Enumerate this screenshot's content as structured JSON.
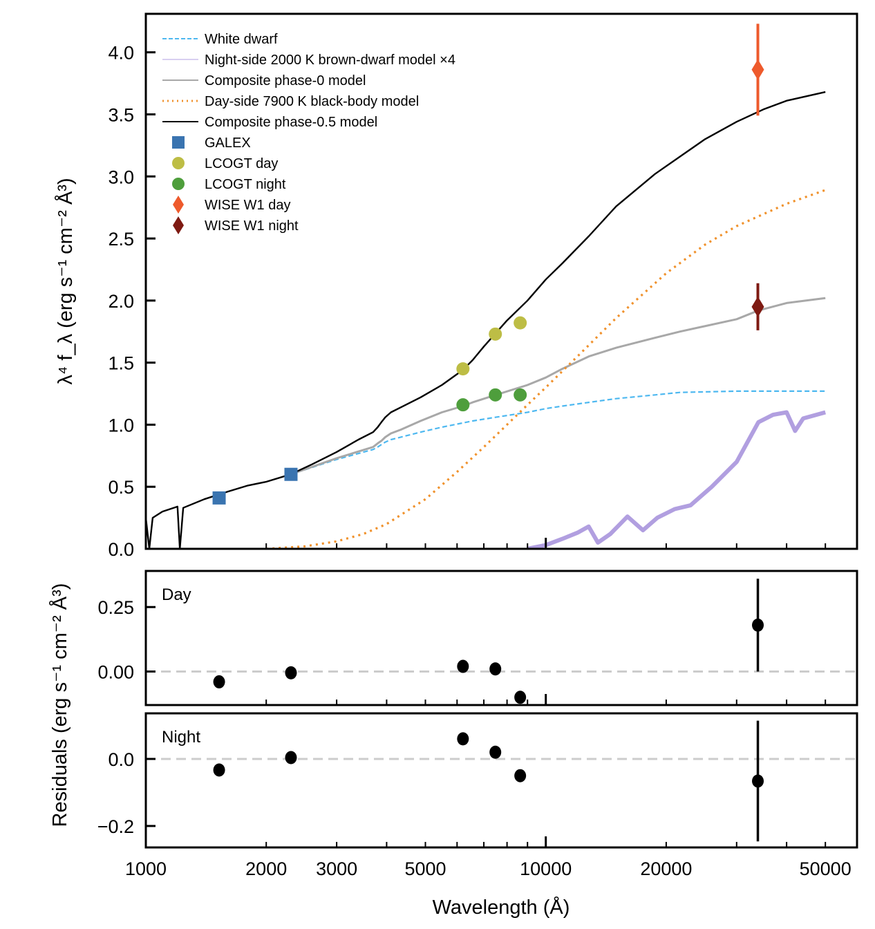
{
  "chart_data": {
    "type": "line",
    "xlabel": "Wavelength (Å)",
    "xscale": "log",
    "xlim": [
      1000,
      60000
    ],
    "xticks": [
      1000,
      2000,
      3000,
      5000,
      10000,
      20000,
      50000
    ],
    "xtick_labels": [
      "1000",
      "2000",
      "3000",
      "5000",
      "10000",
      "20000",
      "50000"
    ],
    "panels": [
      {
        "id": "main",
        "ylabel": "λ⁴ f_λ (erg s⁻¹ cm⁻² Å³)",
        "ylim": [
          0,
          4.31
        ],
        "yticks": [
          0.0,
          0.5,
          1.0,
          1.5,
          2.0,
          2.5,
          3.0,
          3.5,
          4.0
        ],
        "ytick_labels": [
          "0.0",
          "0.5",
          "1.0",
          "1.5",
          "2.0",
          "2.5",
          "3.0",
          "3.5",
          "4.0"
        ],
        "legend_position": "top-left",
        "series": [
          {
            "name": "White dwarf",
            "style": "dashed",
            "color": "#4db8f0",
            "x": [
              2300,
              3000,
              3700,
              3800,
              3880,
              3970,
              4100,
              4340,
              4861,
              5500,
              6563,
              7500,
              9000,
              10000,
              11000,
              12818,
              15000,
              18751,
              21655,
              30000,
              40000,
              50000
            ],
            "y": [
              0.6,
              0.72,
              0.8,
              0.82,
              0.84,
              0.86,
              0.88,
              0.9,
              0.94,
              0.98,
              1.03,
              1.06,
              1.1,
              1.13,
              1.15,
              1.18,
              1.21,
              1.24,
              1.26,
              1.27,
              1.27,
              1.27
            ]
          },
          {
            "name": "Night-side 2000 K brown-dwarf model ×4",
            "style": "solid",
            "color": "#b19fe0",
            "x": [
              9000,
              10000,
              11000,
              12000,
              12800,
              13500,
              14500,
              16000,
              17500,
              19000,
              21000,
              23000,
              26000,
              30000,
              34000,
              37000,
              40000,
              42000,
              44000,
              50000
            ],
            "y": [
              0.0,
              0.03,
              0.08,
              0.13,
              0.18,
              0.05,
              0.12,
              0.26,
              0.15,
              0.25,
              0.32,
              0.35,
              0.5,
              0.7,
              1.02,
              1.08,
              1.1,
              0.95,
              1.05,
              1.1
            ]
          },
          {
            "name": "Composite phase-0 model",
            "style": "solid",
            "color": "#a8a8a8",
            "x": [
              2300,
              3000,
              3700,
              3800,
              3880,
              3970,
              4100,
              4340,
              4861,
              5500,
              6200,
              6563,
              7500,
              9000,
              10000,
              11000,
              12818,
              15000,
              18751,
              21655,
              30000,
              34000,
              40000,
              50000
            ],
            "y": [
              0.6,
              0.73,
              0.82,
              0.85,
              0.87,
              0.9,
              0.93,
              0.96,
              1.03,
              1.1,
              1.15,
              1.18,
              1.24,
              1.32,
              1.38,
              1.45,
              1.55,
              1.62,
              1.7,
              1.75,
              1.85,
              1.92,
              1.98,
              2.02
            ]
          },
          {
            "name": "Day-side 7900 K black-body model",
            "style": "dotted",
            "color": "#f0922d",
            "x": [
              2000,
              2500,
              3000,
              3500,
              4000,
              5000,
              6000,
              7000,
              8000,
              9000,
              10000,
              12000,
              15000,
              20000,
              25000,
              30000,
              40000,
              50000
            ],
            "y": [
              0.0,
              0.02,
              0.06,
              0.12,
              0.2,
              0.4,
              0.62,
              0.82,
              1.0,
              1.16,
              1.3,
              1.55,
              1.86,
              2.22,
              2.45,
              2.6,
              2.78,
              2.89
            ]
          },
          {
            "name": "Composite phase-0.5 model",
            "style": "solid",
            "color": "#000000",
            "x": [
              1000,
              1020,
              1040,
              1100,
              1200,
              1216,
              1240,
              1400,
              1600,
              1800,
              2000,
              2300,
              2600,
              3000,
              3400,
              3700,
              3800,
              3880,
              3970,
              4100,
              4340,
              4861,
              5500,
              6200,
              6563,
              7000,
              8000,
              9000,
              10000,
              11000,
              12818,
              15000,
              18751,
              21655,
              25000,
              30000,
              35000,
              40000,
              50000
            ],
            "y": [
              0.25,
              0.0,
              0.25,
              0.3,
              0.34,
              0.0,
              0.33,
              0.4,
              0.46,
              0.51,
              0.54,
              0.6,
              0.68,
              0.78,
              0.88,
              0.94,
              0.98,
              1.02,
              1.06,
              1.1,
              1.14,
              1.22,
              1.32,
              1.44,
              1.52,
              1.63,
              1.84,
              2.0,
              2.17,
              2.3,
              2.52,
              2.76,
              3.02,
              3.16,
              3.3,
              3.44,
              3.54,
              3.61,
              3.68
            ]
          }
        ],
        "points": [
          {
            "name": "GALEX",
            "marker": "square",
            "color": "#3a74b0",
            "x": [
              1525,
              2306
            ],
            "y": [
              0.41,
              0.6
            ],
            "yerr": [
              0.0,
              0.0
            ]
          },
          {
            "name": "LCOGT day",
            "marker": "circle",
            "color": "#bdbd45",
            "x": [
              6207,
              7480,
              8630
            ],
            "y": [
              1.45,
              1.73,
              1.82
            ],
            "yerr": [
              0.0,
              0.0,
              0.0
            ]
          },
          {
            "name": "LCOGT night",
            "marker": "circle",
            "color": "#4e9e3c",
            "x": [
              6207,
              7480,
              8630
            ],
            "y": [
              1.16,
              1.24,
              1.24
            ],
            "yerr": [
              0.0,
              0.0,
              0.0
            ]
          },
          {
            "name": "WISE W1 day",
            "marker": "diamond",
            "color": "#ee5a2c",
            "x": [
              33900
            ],
            "y": [
              3.86
            ],
            "yerr": [
              0.37
            ]
          },
          {
            "name": "WISE W1 night",
            "marker": "diamond",
            "color": "#7e1a12",
            "x": [
              33900
            ],
            "y": [
              1.95
            ],
            "yerr": [
              0.19
            ]
          }
        ]
      },
      {
        "id": "residuals-day",
        "label": "Day",
        "ylim": [
          -0.13,
          0.39
        ],
        "yticks": [
          0.0,
          0.25
        ],
        "ytick_labels": [
          "0.00",
          "0.25"
        ],
        "reference_line": 0.0,
        "points": {
          "x": [
            1525,
            2306,
            6207,
            7480,
            8630,
            33900
          ],
          "y": [
            -0.04,
            -0.005,
            0.02,
            0.01,
            -0.1,
            0.18
          ],
          "yerr": [
            0.0,
            0.0,
            0.0,
            0.0,
            0.0,
            0.18
          ]
        }
      },
      {
        "id": "residuals-night",
        "label": "Night",
        "ylim": [
          -0.264,
          0.136
        ],
        "yticks": [
          -0.2,
          0.0
        ],
        "ytick_labels": [
          "−0.2",
          "0.0"
        ],
        "reference_line": 0.0,
        "points": {
          "x": [
            1525,
            2306,
            6207,
            7480,
            8630,
            33900
          ],
          "y": [
            -0.033,
            0.004,
            0.06,
            0.02,
            -0.05,
            -0.066
          ],
          "yerr": [
            0.0,
            0.0,
            0.0,
            0.0,
            0.0,
            0.18
          ]
        }
      }
    ],
    "shared_ylabel_residuals": "Residuals (erg s⁻¹ cm⁻² Å³)",
    "reference_line_color": "#cccccc",
    "residual_marker_color": "#000000"
  }
}
